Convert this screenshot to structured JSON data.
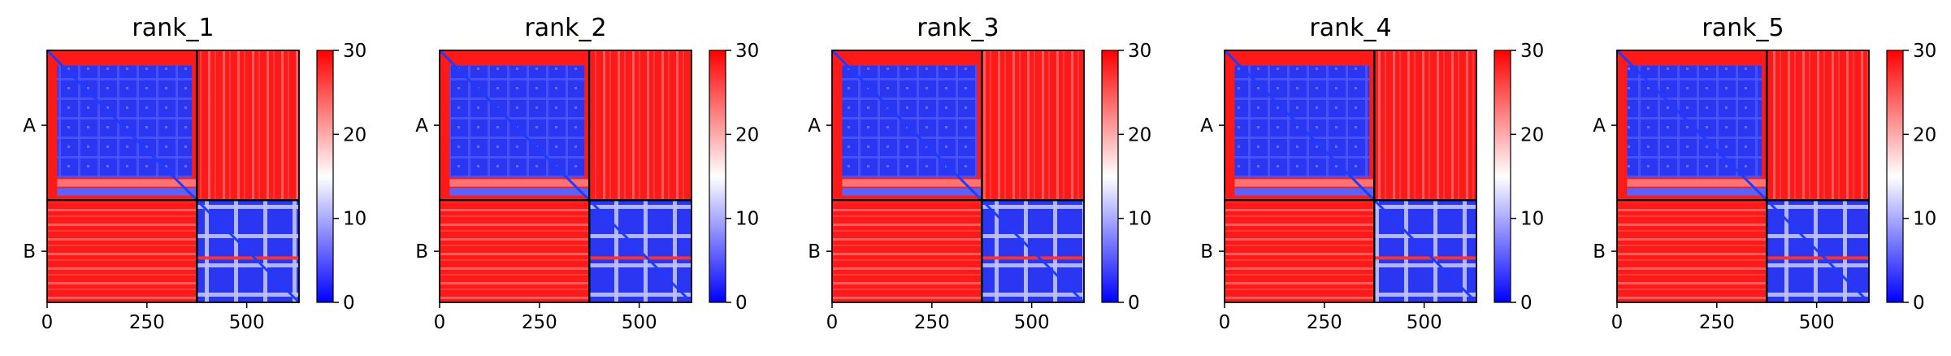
{
  "chart_data": {
    "type": "heatmap",
    "colorbar": {
      "colors": [
        "#0000ff",
        "#ffffff",
        "#ff0000"
      ],
      "range": [
        0,
        30
      ],
      "ticks": [
        "0",
        "10",
        "20",
        "30"
      ]
    },
    "x_axis": {
      "range": [
        0,
        631
      ],
      "ticks": [
        0,
        250,
        500
      ],
      "tick_labels": [
        "0",
        "250",
        "500"
      ]
    },
    "chains": [
      {
        "label": "A",
        "start": 0,
        "end": 375
      },
      {
        "label": "B",
        "start": 375,
        "end": 631
      }
    ],
    "panels": [
      {
        "title": "rank_1"
      },
      {
        "title": "rank_2"
      },
      {
        "title": "rank_3"
      },
      {
        "title": "rank_4"
      },
      {
        "title": "rank_5"
      }
    ]
  }
}
